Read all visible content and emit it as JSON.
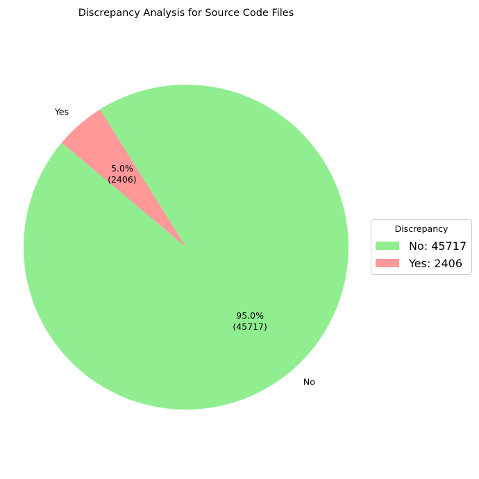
{
  "chart_data": {
    "type": "pie",
    "title": "Discrepancy Analysis for Source Code Files",
    "slices": [
      {
        "label": "No",
        "value": 45717,
        "pct_label": "95.0%",
        "value_label": "(45717)",
        "color": "#90ee90"
      },
      {
        "label": "Yes",
        "value": 2406,
        "pct_label": "5.0%",
        "value_label": "(2406)",
        "color": "#ff9999"
      }
    ],
    "start_angle_deg": 140,
    "direction": "counterclockwise",
    "legend": {
      "title": "Discrepancy",
      "placement": "center-right",
      "entries": [
        "No: 45717",
        "Yes: 2406"
      ]
    }
  }
}
